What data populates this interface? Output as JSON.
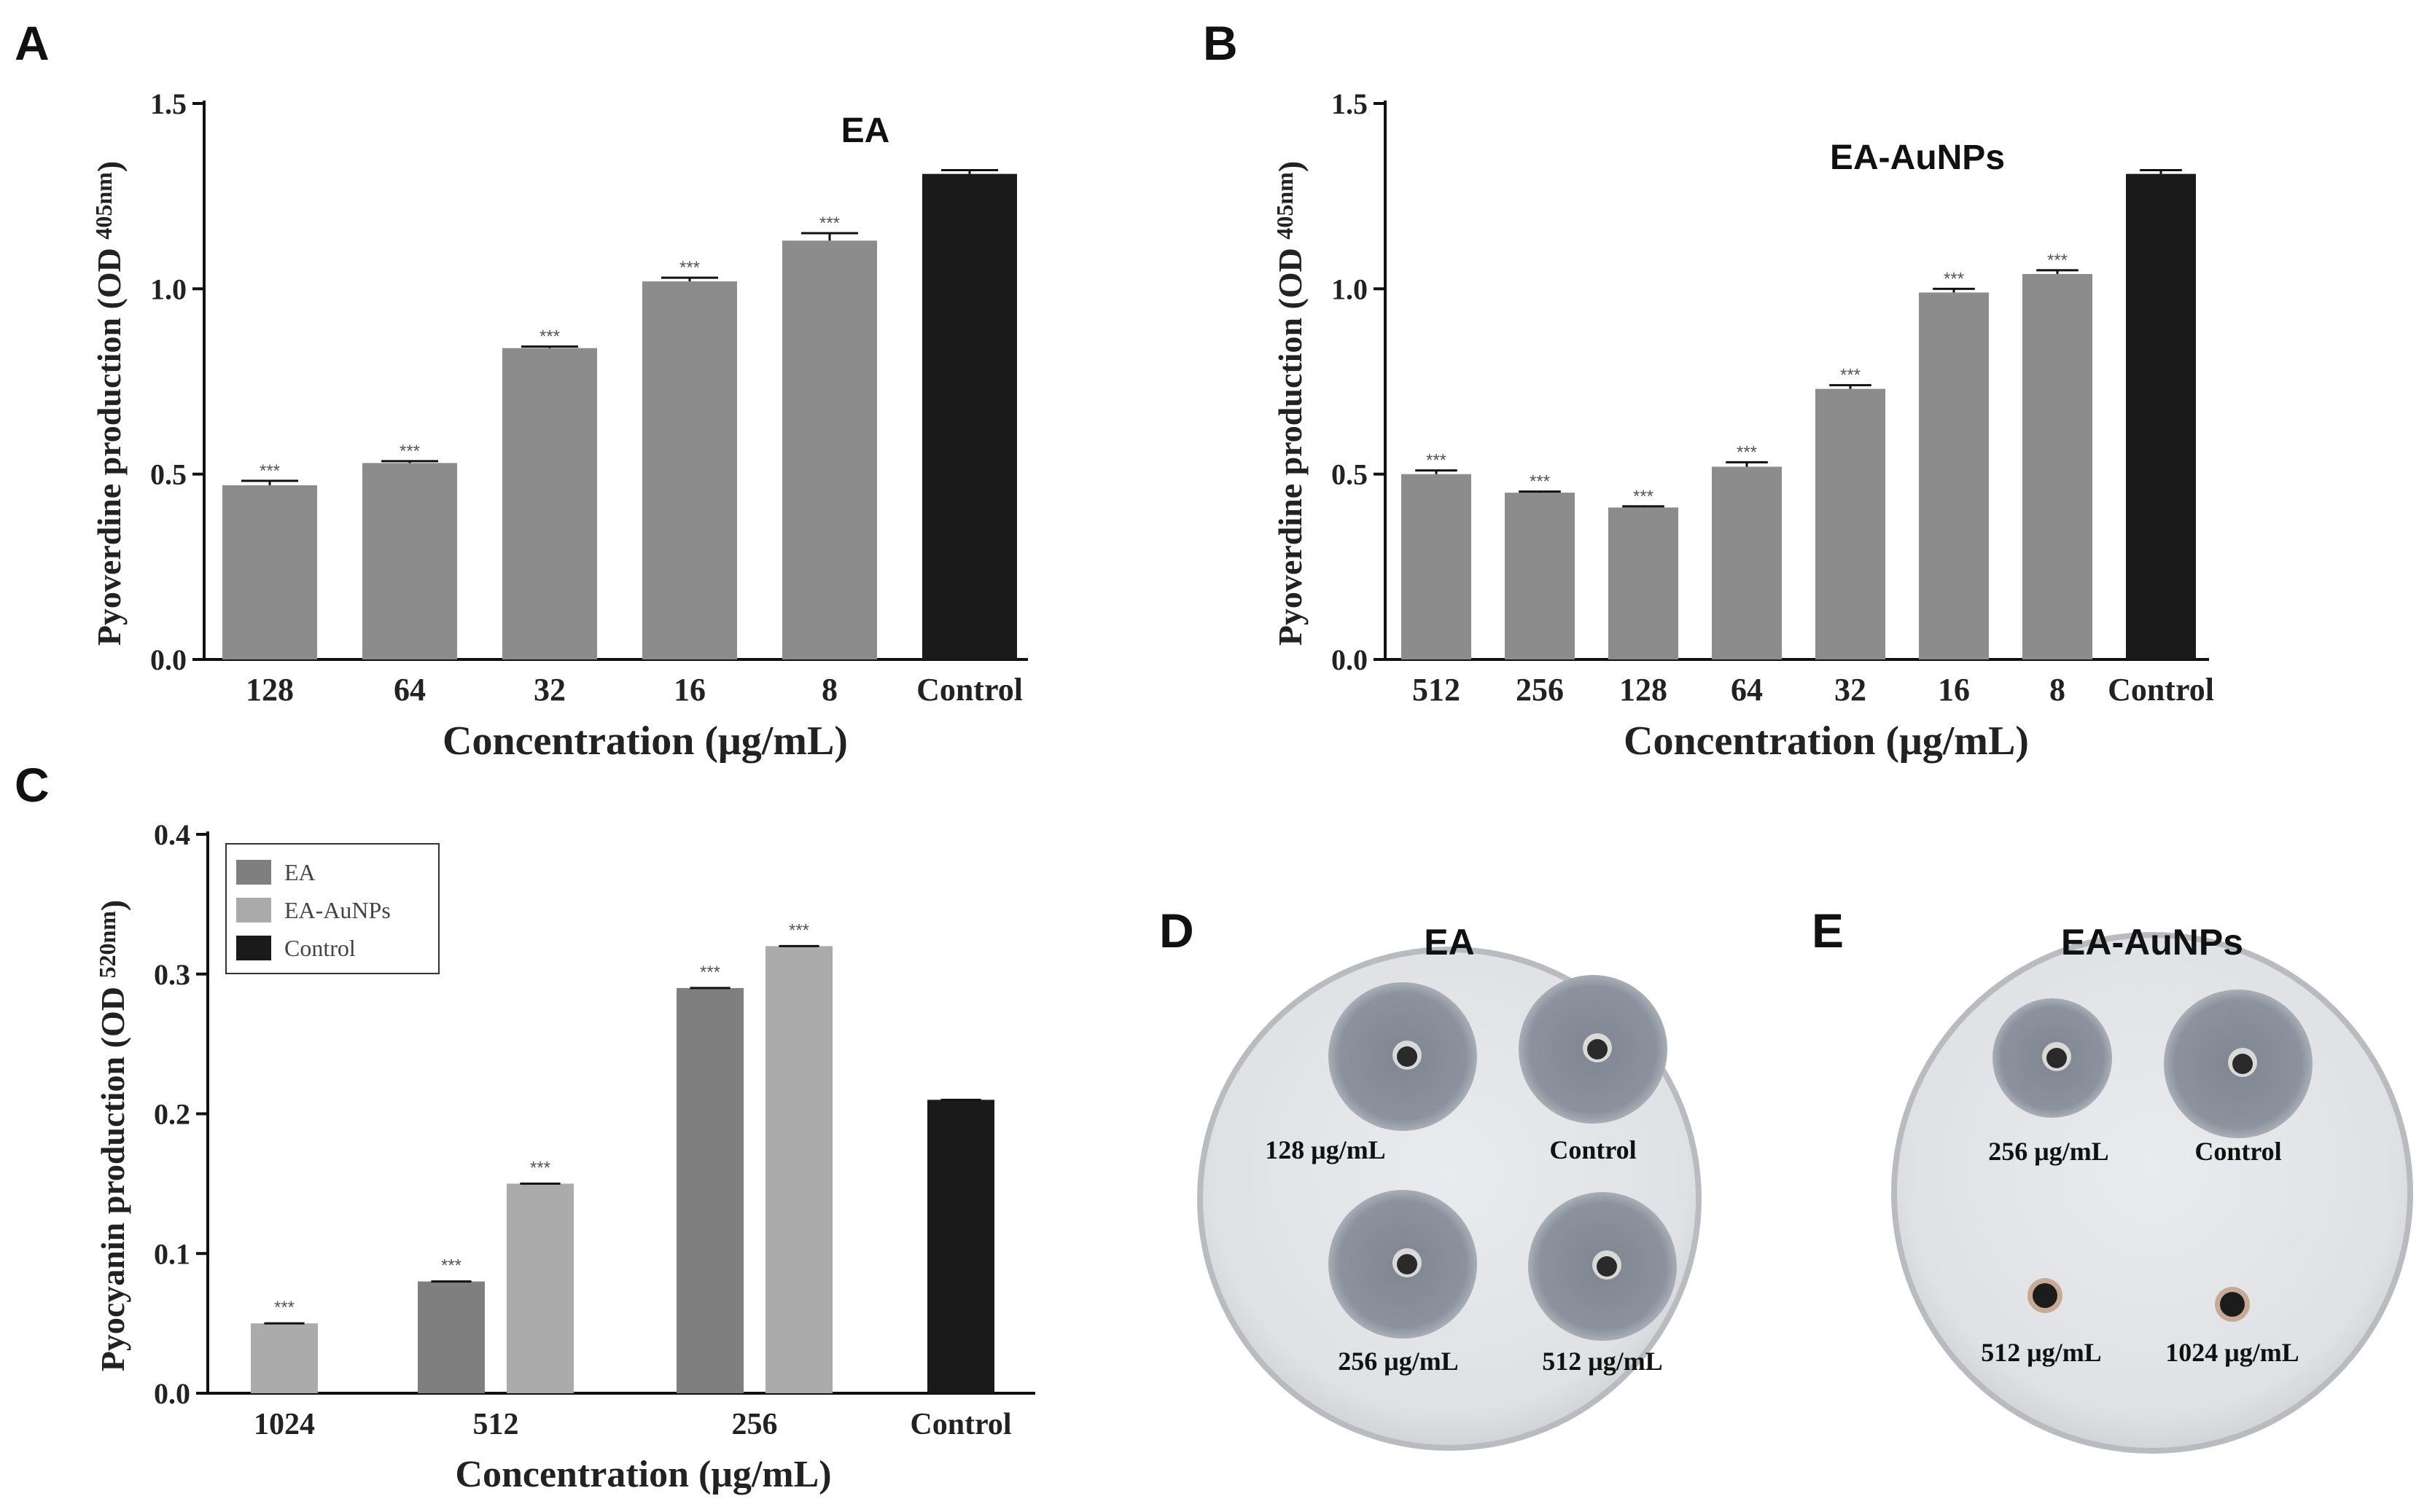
{
  "panel_letters": {
    "a": "A",
    "b": "B",
    "c": "C",
    "d": "D",
    "e": "E"
  },
  "significance_mark": "***",
  "chart_data": [
    {
      "id": "A",
      "type": "bar",
      "title": "EA",
      "xlabel": "Concentration (μg/mL)",
      "ylabel": "Pyoverdine production (OD 405nm)",
      "ylabel_main": "Pyoverdine production (OD",
      "ylabel_sub": "405nm",
      "ylabel_close": ")",
      "ylim": [
        0,
        1.5
      ],
      "yticks": [
        0,
        0.5,
        1.0,
        1.5
      ],
      "ytick_labels": [
        "0.0",
        "0.5",
        "1.0",
        "1.5"
      ],
      "categories": [
        "128",
        "64",
        "32",
        "16",
        "8",
        "Control"
      ],
      "values": [
        0.47,
        0.53,
        0.84,
        1.02,
        1.13,
        1.31
      ],
      "errors": [
        0.012,
        0.005,
        0.004,
        0.01,
        0.02,
        0.01
      ],
      "significant": [
        true,
        true,
        true,
        true,
        true,
        false
      ],
      "colors": [
        "#8c8c8c",
        "#8c8c8c",
        "#8c8c8c",
        "#8c8c8c",
        "#8c8c8c",
        "#1a1a1a"
      ]
    },
    {
      "id": "B",
      "type": "bar",
      "title": "EA-AuNPs",
      "xlabel": "Concentration (μg/mL)",
      "ylabel": "Pyoverdine production (OD 405nm)",
      "ylabel_main": "Pyoverdine production (OD",
      "ylabel_sub": "405nm",
      "ylabel_close": ")",
      "ylim": [
        0,
        1.5
      ],
      "yticks": [
        0,
        0.5,
        1.0,
        1.5
      ],
      "ytick_labels": [
        "0.0",
        "0.5",
        "1.0",
        "1.5"
      ],
      "categories": [
        "512",
        "256",
        "128",
        "64",
        "32",
        "16",
        "8",
        "Control"
      ],
      "values": [
        0.5,
        0.45,
        0.41,
        0.52,
        0.73,
        0.99,
        1.04,
        1.31
      ],
      "errors": [
        0.01,
        0.003,
        0.003,
        0.012,
        0.01,
        0.01,
        0.01,
        0.01
      ],
      "significant": [
        true,
        true,
        true,
        true,
        true,
        true,
        true,
        false
      ],
      "colors": [
        "#8c8c8c",
        "#8c8c8c",
        "#8c8c8c",
        "#8c8c8c",
        "#8c8c8c",
        "#8c8c8c",
        "#8c8c8c",
        "#1a1a1a"
      ]
    },
    {
      "id": "C",
      "type": "bar",
      "title": "",
      "xlabel": "Concentration (μg/mL)",
      "ylabel": "Pyocyanin production (OD 520nm)",
      "ylabel_main": "Pyocyanin production (OD",
      "ylabel_sub": "520nm",
      "ylabel_close": ")",
      "ylim": [
        0,
        0.4
      ],
      "yticks": [
        0,
        0.1,
        0.2,
        0.3,
        0.4
      ],
      "ytick_labels": [
        "0.0",
        "0.1",
        "0.2",
        "0.3",
        "0.4"
      ],
      "categories": [
        "1024",
        "512",
        "256",
        "Control"
      ],
      "legend_position": "top-left",
      "series": [
        {
          "name": "EA",
          "color": "#7f7f7f",
          "values": [
            null,
            0.08,
            0.29,
            null
          ],
          "significant": [
            false,
            true,
            true,
            false
          ]
        },
        {
          "name": "EA-AuNPs",
          "color": "#ababab",
          "values": [
            0.05,
            0.15,
            0.32,
            null
          ],
          "significant": [
            true,
            true,
            true,
            false
          ]
        },
        {
          "name": "Control",
          "color": "#1a1a1a",
          "values": [
            null,
            null,
            null,
            0.21
          ],
          "significant": [
            false,
            false,
            false,
            false
          ]
        }
      ]
    }
  ],
  "plates": [
    {
      "id": "D",
      "title": "EA",
      "wells": [
        {
          "label": "128 μg/mL",
          "zone": "large"
        },
        {
          "label": "Control",
          "zone": "large"
        },
        {
          "label": "256 μg/mL",
          "zone": "large"
        },
        {
          "label": "512 μg/mL",
          "zone": "large"
        }
      ]
    },
    {
      "id": "E",
      "title": "EA-AuNPs",
      "wells": [
        {
          "label": "256 μg/mL",
          "zone": "medium"
        },
        {
          "label": "Control",
          "zone": "large"
        },
        {
          "label": "512 μg/mL",
          "zone": "none"
        },
        {
          "label": "1024 μg/mL",
          "zone": "none"
        }
      ]
    }
  ]
}
